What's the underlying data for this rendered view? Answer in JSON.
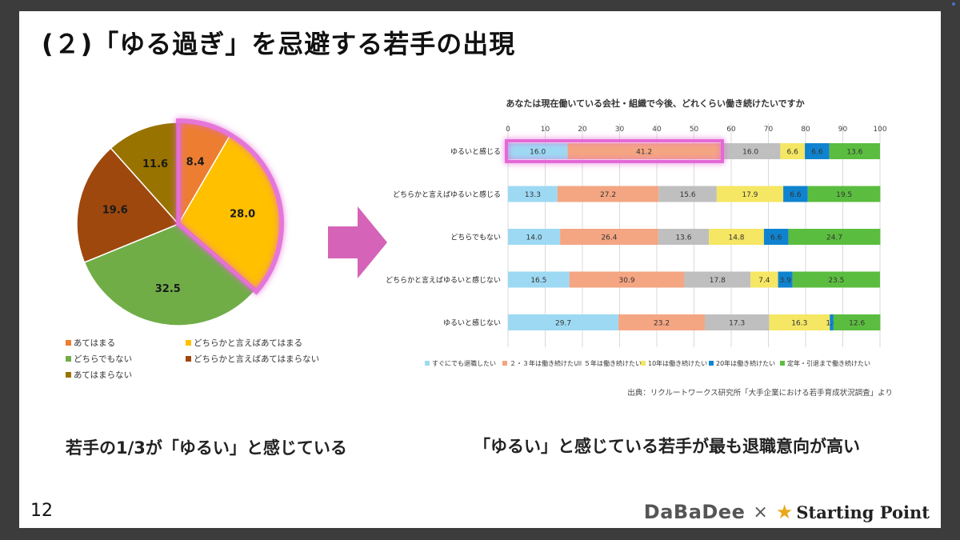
{
  "title": "(２)「ゆる過ぎ」を忌避する若手の出現",
  "page_number": "12",
  "pie_caption": "若手の1/3が「ゆるい」と感じている",
  "bar_caption": "「ゆるい」と感じている若手が最も退職意向が高い",
  "source": "出典：リクルートワークス研究所「大手企業における若手育成状況調査」より",
  "logo": {
    "left": "DaBaDee",
    "separator": "×",
    "right": "Starting Point"
  },
  "chart_data": [
    {
      "type": "pie",
      "categories": [
        "あてはまる",
        "どちらかと言えばあてはまる",
        "どちらでもない",
        "どちらかと言えばあてはまらない",
        "あてはまらない"
      ],
      "values": [
        8.4,
        28.0,
        32.5,
        19.6,
        11.6
      ],
      "labels": [
        "8.4",
        "28.0",
        "32.5",
        "19.6",
        "11.6"
      ],
      "colors": [
        "#ed7d31",
        "#ffc000",
        "#70ad47",
        "#9e480e",
        "#997300"
      ],
      "highlighted": [
        0,
        1
      ],
      "legend_placement": "bottom"
    },
    {
      "type": "bar",
      "orientation": "horizontal",
      "stacked": true,
      "title": "あなたは現在働いている会社・組織で今後、どれくらい働き続けたいですか",
      "categories": [
        "ゆるいと感じる",
        "どちらかと言えばゆるいと感じる",
        "どちらでもない",
        "どちらかと言えばゆるいと感じない",
        "ゆるいと感じない"
      ],
      "xlim": [
        0,
        100
      ],
      "xticks": [
        "0",
        "10",
        "20",
        "30",
        "40",
        "50",
        "60",
        "70",
        "80",
        "90",
        "100"
      ],
      "grid": true,
      "legend_placement": "bottom",
      "series": [
        {
          "name": "すぐにでも退職したい",
          "color": "#9dd9f3",
          "values": [
            16.0,
            13.3,
            14.0,
            16.5,
            29.7
          ]
        },
        {
          "name": "２・３年は働き続けたい",
          "color": "#f4a582",
          "values": [
            41.2,
            27.2,
            26.4,
            30.9,
            23.2
          ]
        },
        {
          "name": "５年は働き続けたい",
          "color": "#bfbfbf",
          "values": [
            16.0,
            15.6,
            13.6,
            17.8,
            17.3
          ]
        },
        {
          "name": "10年は働き続けたい",
          "color": "#f5e663",
          "values": [
            6.6,
            17.9,
            14.8,
            7.4,
            16.3
          ]
        },
        {
          "name": "20年は働き続けたい",
          "color": "#0f83cf",
          "values": [
            6.6,
            6.6,
            6.6,
            3.9,
            1.0
          ]
        },
        {
          "name": "定年・引退まで働き続けたい",
          "color": "#5bbd3f",
          "values": [
            13.6,
            19.5,
            24.7,
            23.5,
            12.6
          ]
        }
      ],
      "highlighted_row": 0,
      "highlighted_series": [
        0,
        1
      ]
    }
  ]
}
